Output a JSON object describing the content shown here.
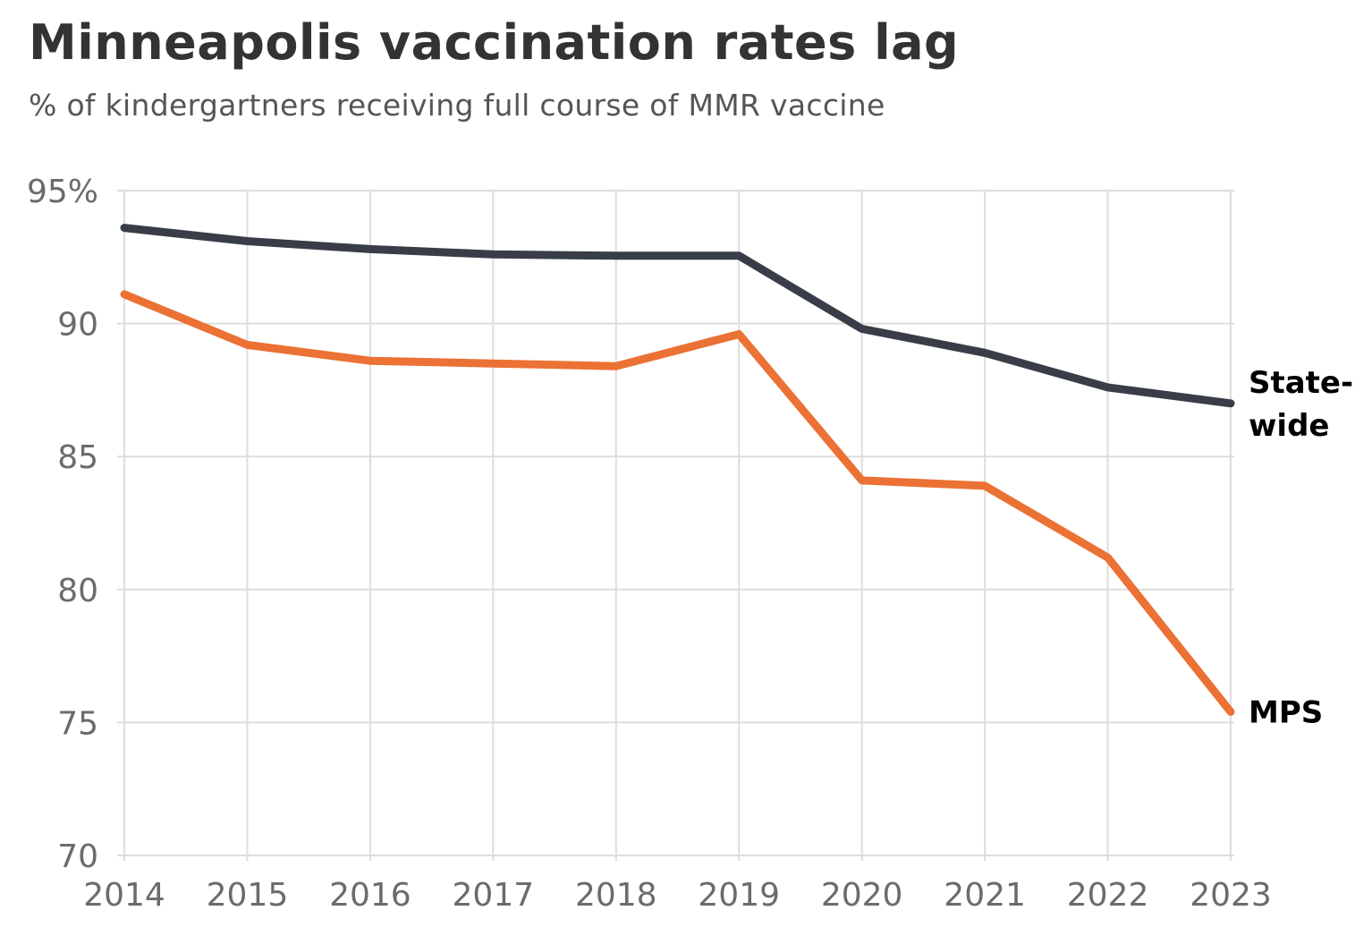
{
  "chart_data": {
    "type": "line",
    "title": "Minneapolis vaccination rates lag",
    "subtitle": "% of kindergartners receiving full course of MMR vaccine",
    "x": [
      "2014",
      "2015",
      "2016",
      "2017",
      "2018",
      "2019",
      "2020",
      "2021",
      "2022",
      "2023"
    ],
    "xlabel": "",
    "ylabel": "",
    "ylim": [
      70,
      95
    ],
    "yticks": [
      95,
      90,
      85,
      80,
      75,
      70
    ],
    "ytick_labels": [
      "95%",
      "90",
      "85",
      "80",
      "75",
      "70"
    ],
    "grid": true,
    "series": [
      {
        "name": "State-wide",
        "label_lines": [
          "State-",
          "wide"
        ],
        "color": "#383d47",
        "values": [
          93.6,
          93.1,
          92.8,
          92.6,
          92.55,
          92.55,
          89.8,
          88.9,
          87.6,
          87.0
        ]
      },
      {
        "name": "MPS",
        "label_lines": [
          "MPS"
        ],
        "color": "#eb7134",
        "values": [
          91.1,
          89.2,
          88.6,
          88.5,
          88.4,
          89.6,
          84.1,
          83.9,
          81.2,
          75.4
        ]
      }
    ]
  }
}
